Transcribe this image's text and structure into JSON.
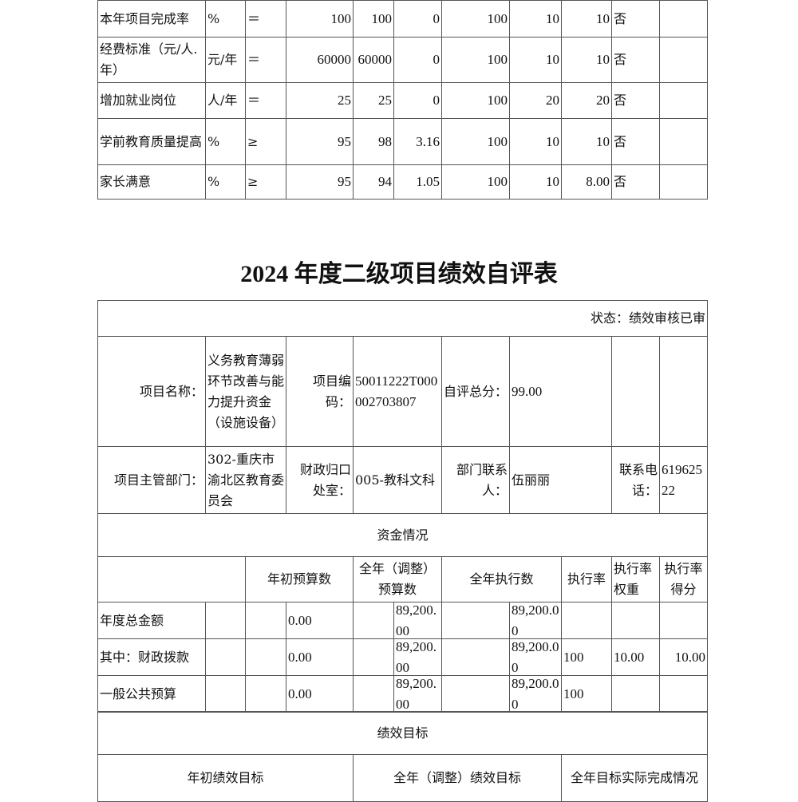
{
  "top_table": {
    "rows": [
      {
        "name": "本年项目完成率",
        "unit": "%",
        "op": "＝",
        "target": "100",
        "actual": "100",
        "deviation": "0",
        "c1": "100",
        "weight": "10",
        "score": "10",
        "flag": "否"
      },
      {
        "name": "经费标准（元/人.年）",
        "unit": "元/年",
        "op": "＝",
        "target": "60000",
        "actual": "60000",
        "deviation": "0",
        "c1": "100",
        "weight": "10",
        "score": "10",
        "flag": "否"
      },
      {
        "name": "增加就业岗位",
        "unit": "人/年",
        "op": "＝",
        "target": "25",
        "actual": "25",
        "deviation": "0",
        "c1": "100",
        "weight": "20",
        "score": "20",
        "flag": "否"
      },
      {
        "name": "学前教育质量提高",
        "unit": "%",
        "op": "≥",
        "target": "95",
        "actual": "98",
        "deviation": "3.16",
        "c1": "100",
        "weight": "10",
        "score": "10",
        "flag": "否"
      },
      {
        "name": "家长满意",
        "unit": "%",
        "op": "≥",
        "target": "95",
        "actual": "94",
        "deviation": "1.05",
        "c1": "100",
        "weight": "10",
        "score": "8.00",
        "flag": "否"
      }
    ]
  },
  "title": "2024 年度二级项目绩效自评表",
  "form": {
    "status": "状态：绩效审核已审",
    "project_name_label": "项目名称：",
    "project_name": "义务教育薄弱环节改善与能力提升资金（设施设备）",
    "project_code_label": "项目编码：",
    "project_code": "50011222T000002703807",
    "self_score_label": "自评总分：",
    "self_score": "99.00",
    "dept_label": "项目主管部门：",
    "dept": "302-重庆市渝北区教育委员会",
    "finance_office_label": "财政归口处室：",
    "finance_office": "005-教科文科",
    "contact_label": "部门联系人：",
    "contact": "伍丽丽",
    "phone_label": "联系电话：",
    "phone": "61962522",
    "funds_section": "资金情况",
    "funds_headers": {
      "initial": "年初预算数",
      "adjusted": "全年（调整）预算数",
      "executed": "全年执行数",
      "rate": "执行率",
      "weight": "执行率权重",
      "score": "执行率得分"
    },
    "funds_rows": [
      {
        "label": "年度总金额",
        "initial": "0.00",
        "adjusted": "89,200.00",
        "executed": "89,200.00",
        "rate": "",
        "weight": "",
        "score": ""
      },
      {
        "label": "其中：财政拨款",
        "initial": "0.00",
        "adjusted": "89,200.00",
        "executed": "89,200.00",
        "rate": "100",
        "weight": "10.00",
        "score": "10.00"
      },
      {
        "label": "一般公共预算",
        "initial": "0.00",
        "adjusted": "89,200.00",
        "executed": "89,200.00",
        "rate": "100",
        "weight": "",
        "score": ""
      }
    ],
    "perf_section": "绩效目标",
    "perf_headers": {
      "initial": "年初绩效目标",
      "adjusted": "全年（调整）绩效目标",
      "actual": "全年目标实际完成情况"
    }
  }
}
